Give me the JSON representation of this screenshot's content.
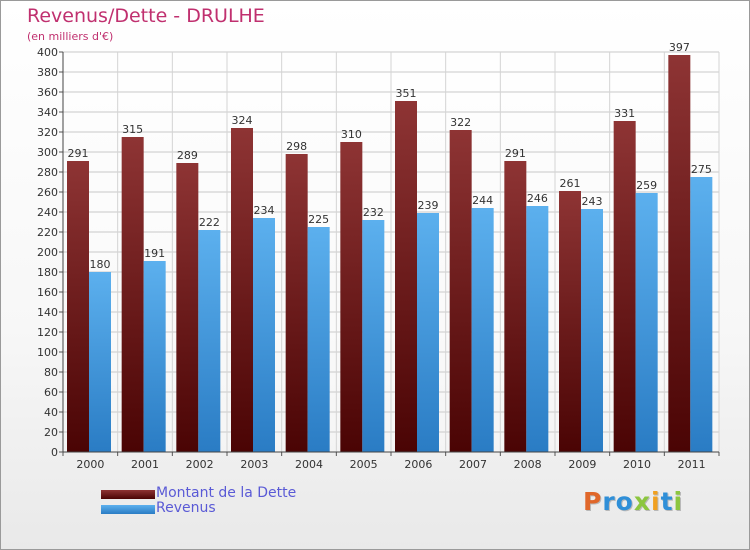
{
  "chart_data": {
    "type": "bar",
    "title": "Revenus/Dette - DRULHE",
    "subtitle": "(en milliers d'€)",
    "categories": [
      "2000",
      "2001",
      "2002",
      "2003",
      "2004",
      "2005",
      "2006",
      "2007",
      "2008",
      "2009",
      "2010",
      "2011"
    ],
    "series": [
      {
        "name": "Montant de la Dette",
        "color": "#6e1414",
        "values": [
          291,
          315,
          289,
          324,
          298,
          310,
          351,
          322,
          291,
          261,
          331,
          397
        ]
      },
      {
        "name": "Revenus",
        "color": "#3d9be4",
        "values": [
          180,
          191,
          222,
          234,
          225,
          232,
          239,
          244,
          246,
          243,
          259,
          275
        ]
      }
    ],
    "ylim": [
      0,
      400
    ],
    "ytick_step": 20,
    "grid": true,
    "legend_position": "bottom-left"
  },
  "logo": {
    "letters": [
      {
        "char": "P",
        "color": "#e0672a"
      },
      {
        "char": "r",
        "color": "#2f8fd8"
      },
      {
        "char": "o",
        "color": "#2f8fd8"
      },
      {
        "char": "x",
        "color": "#8cc63f"
      },
      {
        "char": "i",
        "color": "#f0a020"
      },
      {
        "char": "t",
        "color": "#2f8fd8"
      },
      {
        "char": "i",
        "color": "#8cc63f"
      }
    ]
  }
}
